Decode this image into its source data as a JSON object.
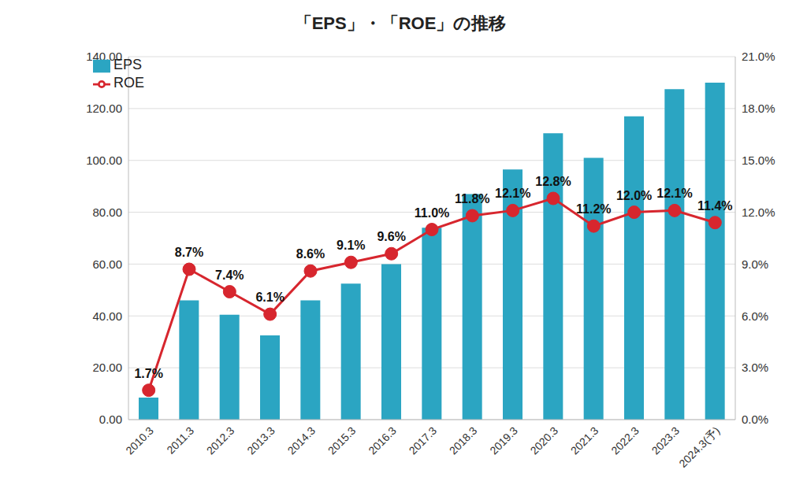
{
  "chart_data": {
    "type": "bar",
    "title": "「EPS」・「ROE」の推移",
    "categories": [
      "2010.3",
      "2011.3",
      "2012.3",
      "2013.3",
      "2014.3",
      "2015.3",
      "2016.3",
      "2017.3",
      "2018.3",
      "2019.3",
      "2020.3",
      "2021.3",
      "2022.3",
      "2023.3",
      "2024.3(予)"
    ],
    "series": [
      {
        "name": "EPS",
        "type": "bar",
        "color": "#2ba5c2",
        "values": [
          8.5,
          46,
          40.5,
          32.5,
          46,
          52.5,
          60,
          74,
          87,
          96.5,
          110.5,
          101,
          117,
          127.5,
          130
        ]
      },
      {
        "name": "ROE",
        "type": "line",
        "axis": "y2",
        "color": "#d7262e",
        "marker": "circle",
        "data_labels": true,
        "values": [
          1.7,
          8.7,
          7.4,
          6.1,
          8.6,
          9.1,
          9.6,
          11.0,
          11.8,
          12.1,
          12.8,
          11.2,
          12.0,
          12.1,
          11.4
        ],
        "value_labels": [
          "1.7%",
          "8.7%",
          "7.4%",
          "6.1%",
          "8.6%",
          "9.1%",
          "9.6%",
          "11.0%",
          "11.8%",
          "12.1%",
          "12.8%",
          "11.2%",
          "12.0%",
          "12.1%",
          "11.4%"
        ]
      }
    ],
    "ylim": [
      0,
      140
    ],
    "yticks": [
      {
        "value": 0,
        "label": "0.00"
      },
      {
        "value": 20,
        "label": "20.00"
      },
      {
        "value": 40,
        "label": "40.00"
      },
      {
        "value": 60,
        "label": "60.00"
      },
      {
        "value": 80,
        "label": "80.00"
      },
      {
        "value": 100,
        "label": "100.00"
      },
      {
        "value": 120,
        "label": "120.00"
      },
      {
        "value": 140,
        "label": "140.00"
      }
    ],
    "y2lim": [
      0,
      21
    ],
    "y2ticks": [
      {
        "value": 0,
        "label": "0.0%"
      },
      {
        "value": 3,
        "label": "3.0%"
      },
      {
        "value": 6,
        "label": "6.0%"
      },
      {
        "value": 9,
        "label": "9.0%"
      },
      {
        "value": 12,
        "label": "12.0%"
      },
      {
        "value": 15,
        "label": "15.0%"
      },
      {
        "value": 18,
        "label": "18.0%"
      },
      {
        "value": 21,
        "label": "21.0%"
      }
    ],
    "grid": true,
    "legend": "upper left"
  }
}
